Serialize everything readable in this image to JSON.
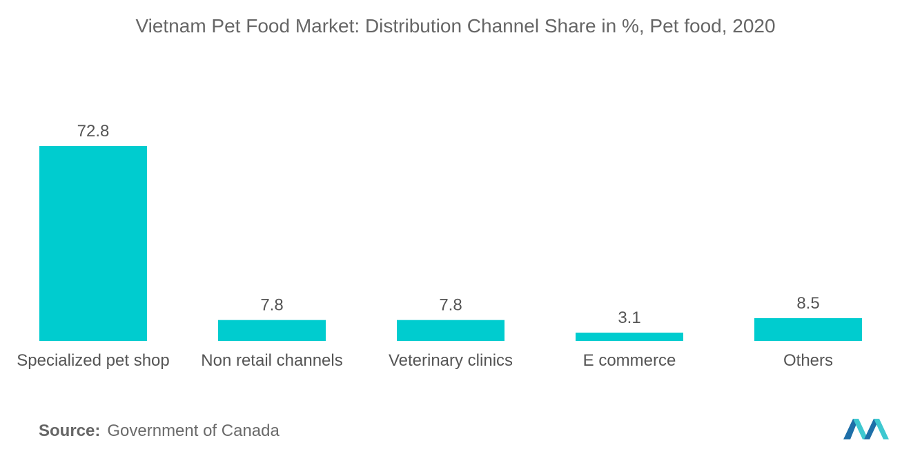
{
  "chart_data": {
    "type": "bar",
    "title": "Vietnam Pet Food Market: Distribution Channel Share in %, Pet food, 2020",
    "categories": [
      "Specialized pet shop",
      "Non retail channels",
      "Veterinary clinics",
      "E commerce",
      "Others"
    ],
    "values": [
      72.8,
      7.8,
      7.8,
      3.1,
      8.5
    ],
    "value_labels": [
      "72.8",
      "7.8",
      "7.8",
      "3.1",
      "8.5"
    ],
    "xlabel": "",
    "ylabel": "",
    "ylim": [
      0,
      72.8
    ],
    "grid": false,
    "legend": "none",
    "bar_color": "#00cccf"
  },
  "source": {
    "label": "Source:",
    "text": "Government of Canada"
  },
  "logo": {
    "icon": "mordor-intelligence-logo",
    "colors": [
      "#1e6fa8",
      "#3ec8d0"
    ]
  }
}
